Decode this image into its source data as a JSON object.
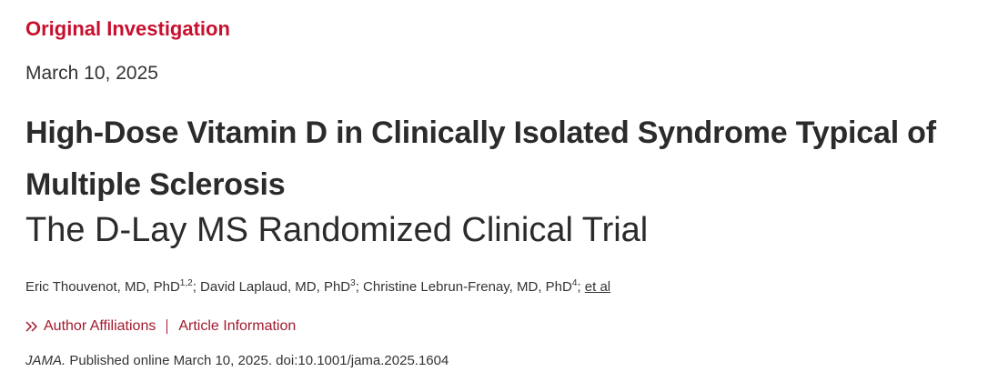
{
  "article_type": "Original Investigation",
  "date": "March 10, 2025",
  "title": "High-Dose Vitamin D in Clinically Isolated Syndrome Typical of Multiple Sclerosis",
  "subtitle": "The D-Lay MS Randomized Clinical Trial",
  "authors": [
    {
      "name": "Eric Thouvenot, MD, PhD",
      "affiliations": "1,2",
      "separator": ";"
    },
    {
      "name": "David Laplaud, MD, PhD",
      "affiliations": "3",
      "separator": ";"
    },
    {
      "name": "Christine Lebrun-Frenay, MD, PhD",
      "affiliations": "4",
      "separator": ";"
    }
  ],
  "et_al": "et al",
  "links": [
    "Author Affiliations",
    "Article Information"
  ],
  "citation": {
    "journal": "JAMA.",
    "text": "Published online March 10, 2025. doi:10.1001/jama.2025.1604"
  }
}
